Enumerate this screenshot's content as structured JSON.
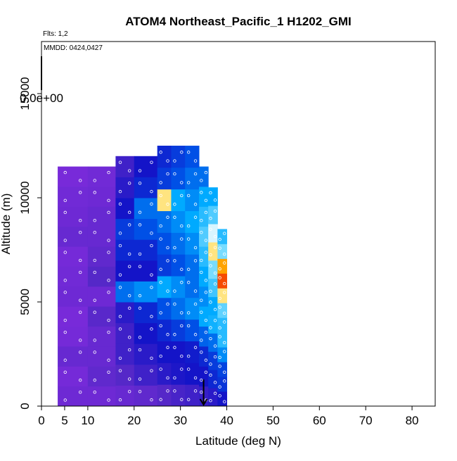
{
  "chart_data": {
    "type": "heatmap",
    "title": "ATOM4 Northeast_Pacific_1 H1202_GMI",
    "annotations": [
      "Flts: 1,2",
      "MMDD: 0424,0427"
    ],
    "colorbar_label": "0.0e+00",
    "xlabel": "Latitude (deg N)",
    "ylabel": "Altitude (m)",
    "xlim": [
      0,
      85
    ],
    "ylim": [
      0,
      17500
    ],
    "xticks": [
      0,
      5,
      10,
      20,
      30,
      40,
      50,
      60,
      70,
      80
    ],
    "yticks": [
      0,
      5000,
      10000,
      15000
    ],
    "grid": false,
    "legend": "none",
    "arrow_marker": {
      "lat": 35,
      "alt": 600
    },
    "columns": [
      {
        "x0": 3.5,
        "x1": 10,
        "top": 11500,
        "profile": [
          0.08,
          0.06,
          0.1,
          0.06,
          0.05,
          0.08,
          0.07,
          0.06,
          0.1,
          0.08,
          0.07,
          0.05
        ]
      },
      {
        "x0": 10,
        "x1": 16,
        "top": 11500,
        "profile": [
          0.08,
          0.12,
          0.1,
          0.1,
          0.14,
          0.08,
          0.15,
          0.12,
          0.1,
          0.1,
          0.08,
          0.07
        ]
      },
      {
        "x0": 16,
        "x1": 20,
        "top": 12000,
        "profile": [
          0.1,
          0.15,
          0.2,
          0.2,
          0.25,
          0.5,
          0.3,
          0.35,
          0.4,
          0.3,
          0.25,
          0.2
        ]
      },
      {
        "x0": 20,
        "x1": 25,
        "top": 12000,
        "profile": [
          0.12,
          0.2,
          0.25,
          0.3,
          0.35,
          0.55,
          0.3,
          0.35,
          0.45,
          0.5,
          0.35,
          0.3
        ]
      },
      {
        "x0": 25,
        "x1": 28,
        "top": 12500,
        "profile": [
          0.15,
          0.25,
          0.3,
          0.35,
          0.45,
          0.6,
          0.4,
          0.45,
          0.5,
          0.85,
          0.4,
          0.35
        ]
      },
      {
        "x0": 28,
        "x1": 31,
        "top": 12500,
        "profile": [
          0.18,
          0.28,
          0.3,
          0.4,
          0.5,
          0.55,
          0.45,
          0.5,
          0.55,
          0.6,
          0.45,
          0.4
        ]
      },
      {
        "x0": 31,
        "x1": 34,
        "top": 12500,
        "profile": [
          0.2,
          0.3,
          0.32,
          0.45,
          0.55,
          0.5,
          0.5,
          0.55,
          0.6,
          0.55,
          0.5,
          0.45
        ]
      },
      {
        "x0": 34,
        "x1": 36,
        "top": 11500,
        "profile": [
          0.22,
          0.3,
          0.35,
          0.48,
          0.6,
          0.55,
          0.6,
          0.65,
          0.7,
          0.65,
          0.6,
          0.5
        ]
      },
      {
        "x0": 36,
        "x1": 38,
        "top": 10500,
        "profile": [
          0.25,
          0.35,
          0.4,
          0.5,
          0.62,
          0.6,
          0.68,
          0.75,
          0.85,
          0.8,
          0.7,
          0.6
        ]
      },
      {
        "x0": 38,
        "x1": 40,
        "top": 8500,
        "profile": [
          0.3,
          0.38,
          0.42,
          0.55,
          0.65,
          0.65,
          0.72,
          0.85,
          0.95,
          0.9,
          0.75,
          0.65
        ]
      }
    ]
  }
}
